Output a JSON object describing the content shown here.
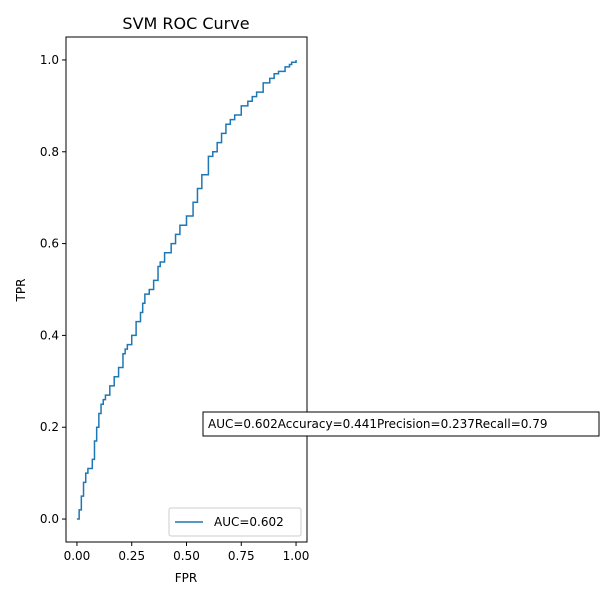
{
  "chart_data": {
    "type": "line",
    "title": "SVM ROC Curve",
    "xlabel": "FPR",
    "ylabel": "TPR",
    "xlim": [
      -0.05,
      1.05
    ],
    "ylim": [
      -0.05,
      1.05
    ],
    "xticks": [
      0.0,
      0.25,
      0.5,
      0.75,
      1.0
    ],
    "xtick_labels": [
      "0.00",
      "0.25",
      "0.50",
      "0.75",
      "1.00"
    ],
    "yticks": [
      0.0,
      0.2,
      0.4,
      0.6,
      0.8,
      1.0
    ],
    "ytick_labels": [
      "0.0",
      "0.2",
      "0.4",
      "0.6",
      "0.8",
      "1.0"
    ],
    "grid": false,
    "legend_position": "lower-right",
    "series": [
      {
        "name": "AUC=0.602",
        "color": "#1f77b4",
        "x": [
          0.0,
          0.01,
          0.02,
          0.03,
          0.04,
          0.05,
          0.07,
          0.08,
          0.09,
          0.1,
          0.11,
          0.12,
          0.13,
          0.15,
          0.17,
          0.19,
          0.21,
          0.22,
          0.23,
          0.25,
          0.27,
          0.29,
          0.3,
          0.31,
          0.33,
          0.35,
          0.37,
          0.38,
          0.4,
          0.43,
          0.45,
          0.47,
          0.5,
          0.53,
          0.55,
          0.57,
          0.6,
          0.62,
          0.64,
          0.66,
          0.68,
          0.7,
          0.72,
          0.75,
          0.78,
          0.8,
          0.82,
          0.85,
          0.88,
          0.9,
          0.92,
          0.95,
          0.97,
          0.98,
          1.0
        ],
        "y": [
          0.0,
          0.02,
          0.05,
          0.08,
          0.1,
          0.11,
          0.13,
          0.17,
          0.2,
          0.23,
          0.25,
          0.26,
          0.27,
          0.29,
          0.31,
          0.33,
          0.36,
          0.37,
          0.38,
          0.4,
          0.43,
          0.45,
          0.47,
          0.49,
          0.5,
          0.52,
          0.55,
          0.56,
          0.58,
          0.6,
          0.62,
          0.64,
          0.66,
          0.69,
          0.72,
          0.75,
          0.79,
          0.8,
          0.82,
          0.84,
          0.86,
          0.87,
          0.88,
          0.9,
          0.91,
          0.92,
          0.93,
          0.95,
          0.96,
          0.97,
          0.975,
          0.985,
          0.99,
          0.995,
          1.0
        ]
      }
    ],
    "annotation": "AUC=0.602Accuracy=0.441Precision=0.237Recall=0.79"
  }
}
